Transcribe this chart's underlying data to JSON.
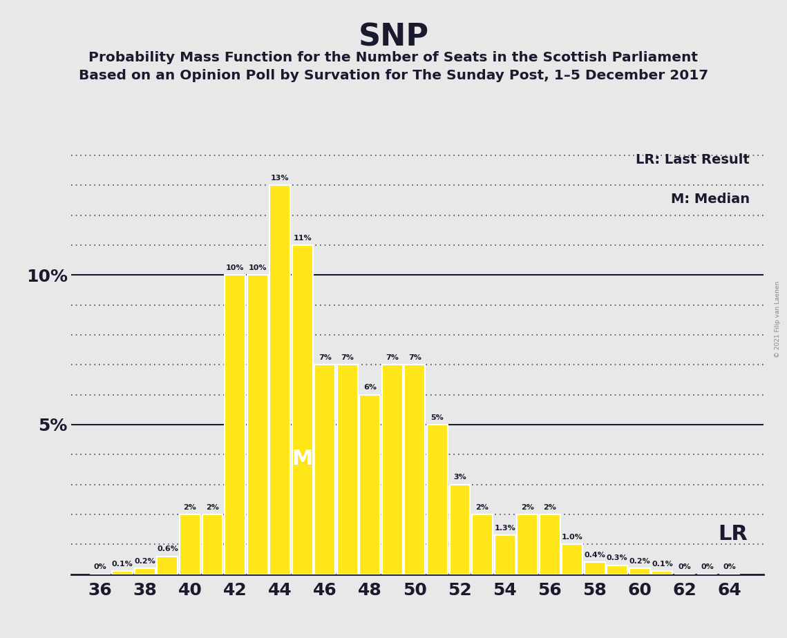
{
  "title": "SNP",
  "subtitle1": "Probability Mass Function for the Number of Seats in the Scottish Parliament",
  "subtitle2": "Based on an Opinion Poll by Survation for The Sunday Post, 1–5 December 2017",
  "legend_lr": "LR: Last Result",
  "legend_m": "M: Median",
  "watermark": "© 2021 Filip van Laenen",
  "categories": [
    36,
    37,
    38,
    39,
    40,
    41,
    42,
    43,
    44,
    45,
    46,
    47,
    48,
    49,
    50,
    51,
    52,
    53,
    54,
    55,
    56,
    57,
    58,
    59,
    60,
    61,
    62,
    63,
    64
  ],
  "values": [
    0.0,
    0.1,
    0.2,
    0.6,
    2.0,
    2.0,
    10.0,
    10.0,
    13.0,
    11.0,
    7.0,
    7.0,
    6.0,
    7.0,
    7.0,
    5.0,
    3.0,
    2.0,
    1.3,
    2.0,
    2.0,
    1.0,
    0.4,
    0.3,
    0.2,
    0.1,
    0.0,
    0.0,
    0.0
  ],
  "bar_color": "#FFE619",
  "bar_edge_color": "#FFFFFF",
  "background_color": "#E8E8E8",
  "title_color": "#1a1a2e",
  "text_color": "#1a1a2e",
  "grid_color": "#444444",
  "ylim": [
    0,
    14.5
  ],
  "xlabel_ticks": [
    36,
    38,
    40,
    42,
    44,
    46,
    48,
    50,
    52,
    54,
    56,
    58,
    60,
    62,
    64
  ],
  "median_seat": 45,
  "lr_seat": 63,
  "bar_labels": {
    "36": "0%",
    "37": "0.1%",
    "38": "0.2%",
    "39": "0.6%",
    "40": "2%",
    "41": "2%",
    "42": "10%",
    "43": "10%",
    "44": "13%",
    "45": "11%",
    "46": "7%",
    "47": "7%",
    "48": "6%",
    "49": "7%",
    "50": "7%",
    "51": "5%",
    "52": "3%",
    "53": "2%",
    "54": "1.3%",
    "55": "2%",
    "56": "2%",
    "57": "1.0%",
    "58": "0.4%",
    "59": "0.3%",
    "60": "0.2%",
    "61": "0.1%",
    "62": "0%",
    "63": "0%",
    "64": "0%"
  }
}
